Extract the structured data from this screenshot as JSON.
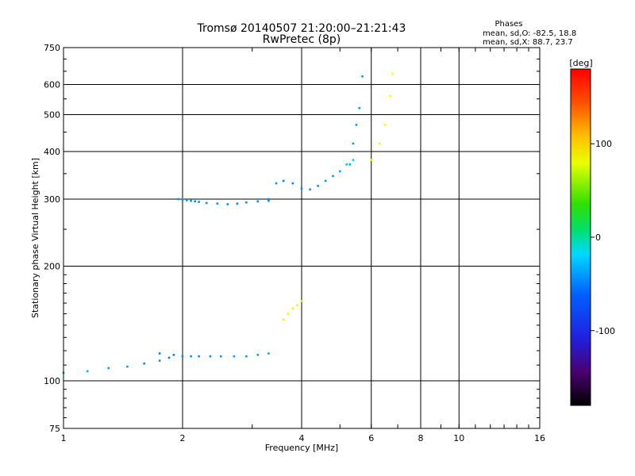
{
  "chart_data": {
    "type": "scatter",
    "title": "Tromsø 20140507 21:20:00–21:21:43",
    "subtitle": "RwPretec (8p)",
    "xlabel": "Frequency [MHz]",
    "ylabel": "Stationary phase Virtual Height [km]",
    "x_scale": "log",
    "y_scale": "log",
    "xlim": [
      1,
      16
    ],
    "ylim": [
      75,
      750
    ],
    "grid": true,
    "x_ticks": [
      "1",
      "2",
      "4",
      "6",
      "8",
      "10",
      "16"
    ],
    "y_ticks": [
      "75",
      "100",
      "200",
      "300",
      "400",
      "500",
      "600",
      "750"
    ],
    "phases": {
      "heading": "Phases",
      "line_o": "mean, sd,O: -82.5, 18.8",
      "line_x": "mean, sd,X: 88.7, 23.7"
    },
    "colorbar": {
      "label": "[deg]",
      "range": [
        -180,
        180
      ],
      "ticks": [
        "100",
        "0",
        "-100"
      ],
      "tick_values": [
        100,
        0,
        -100
      ]
    },
    "traces": [
      {
        "name": "",
        "freq": [
          1.0,
          1.15,
          1.3,
          1.45,
          1.6,
          1.75,
          1.85
        ],
        "height": [
          105,
          106,
          108,
          109,
          111,
          113,
          115
        ],
        "phase": [
          -85,
          -85,
          -90,
          -90,
          -95,
          -95,
          -100
        ]
      },
      {
        "name": "",
        "freq": [
          1.75,
          1.9,
          2.0,
          2.1,
          2.2,
          2.35,
          2.5,
          2.7,
          2.9,
          3.1,
          3.3
        ],
        "height": [
          118,
          117,
          116,
          116,
          116,
          116,
          116,
          116,
          116,
          117,
          118
        ],
        "phase": [
          -100,
          -100,
          -95,
          -95,
          -95,
          -95,
          -90,
          -90,
          -90,
          -90,
          -85
        ]
      },
      {
        "name": "",
        "freq": [
          1.95,
          2.0,
          2.05,
          2.1,
          2.15,
          2.2,
          2.3,
          2.45,
          2.6,
          2.75,
          2.9,
          3.1,
          3.3
        ],
        "height": [
          300,
          299,
          298,
          297,
          296,
          295,
          293,
          292,
          291,
          292,
          294,
          296,
          297
        ],
        "phase": [
          -95,
          -95,
          -95,
          -95,
          -95,
          -95,
          -95,
          -95,
          -95,
          -95,
          -95,
          -95,
          -95
        ]
      },
      {
        "name": "",
        "freq": [
          3.3,
          3.45,
          3.6,
          3.8,
          4.0,
          4.2,
          4.4,
          4.6,
          4.8,
          5.0,
          5.2,
          5.4
        ],
        "height": [
          300,
          330,
          335,
          330,
          320,
          318,
          325,
          335,
          345,
          355,
          370,
          380
        ],
        "phase": [
          -95,
          -95,
          -100,
          -100,
          -95,
          -95,
          -95,
          -95,
          -90,
          -85,
          -80,
          -75
        ]
      },
      {
        "name": "",
        "freq": [
          5.3,
          5.4,
          5.5,
          5.6,
          5.7,
          6.0,
          6.3,
          6.5,
          6.7,
          6.8
        ],
        "height": [
          370,
          420,
          470,
          520,
          630,
          380,
          420,
          470,
          560,
          640
        ],
        "phase": [
          -90,
          -90,
          -90,
          -90,
          -90,
          90,
          95,
          95,
          100,
          100
        ]
      },
      {
        "name": "",
        "freq": [
          3.6,
          3.7,
          3.8,
          3.9,
          4.0
        ],
        "height": [
          145,
          150,
          155,
          158,
          162
        ],
        "phase": [
          95,
          95,
          90,
          90,
          85
        ]
      }
    ]
  }
}
